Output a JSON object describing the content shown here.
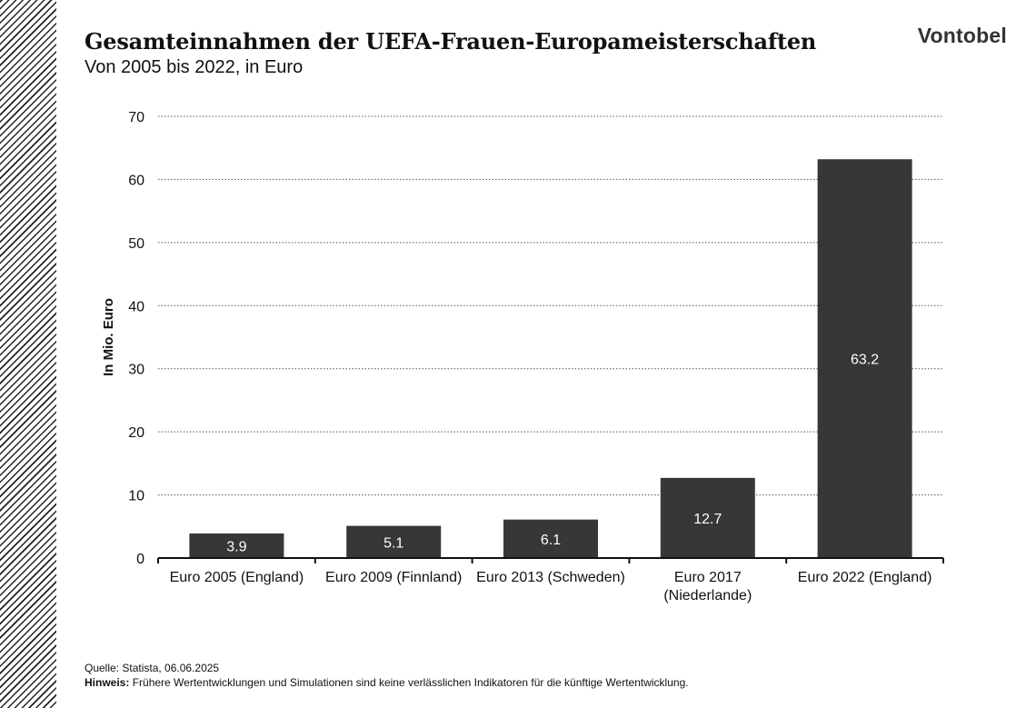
{
  "header": {
    "title": "Gesamteinnahmen der UEFA-Frauen-Europameisterschaften",
    "subtitle": "Von 2005 bis 2022, in Euro",
    "brand": "Vontobel"
  },
  "footer": {
    "source": "Quelle: Statista, 06.06.2025",
    "note_label": "Hinweis:",
    "note_text": "Frühere Wertentwicklungen und Simulationen sind keine verlässlichen Indikatoren für die künftige Wertentwicklung."
  },
  "colors": {
    "bar": "#363836",
    "bar_label": "#ffffff",
    "grid": "#555555",
    "axis": "#111111"
  },
  "chart_data": {
    "type": "bar",
    "title": "Gesamteinnahmen der UEFA-Frauen-Europameisterschaften",
    "subtitle": "Von 2005 bis 2022, in Euro",
    "xlabel": "",
    "ylabel": "In Mio. Euro",
    "ylim": [
      0,
      70
    ],
    "yticks": [
      0,
      10,
      20,
      30,
      40,
      50,
      60,
      70
    ],
    "grid": "horizontal dotted",
    "categories": [
      [
        "Euro 2005 (England)"
      ],
      [
        "Euro 2009 (Finnland)"
      ],
      [
        "Euro 2013 (Schweden)"
      ],
      [
        "Euro 2017",
        "(Niederlande)"
      ],
      [
        "Euro 2022 (England)"
      ]
    ],
    "values": [
      3.9,
      5.1,
      6.1,
      12.7,
      63.2
    ],
    "data_labels": [
      "3.9",
      "5.1",
      "6.1",
      "12.7",
      "63.2"
    ]
  }
}
